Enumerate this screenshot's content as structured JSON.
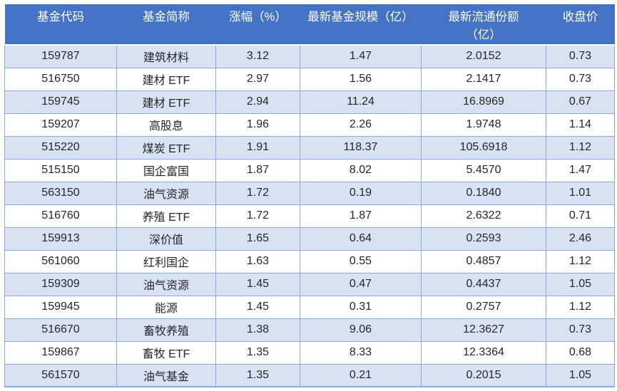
{
  "colors": {
    "header_bg": "#4472C4",
    "header_text": "#FFFFFF",
    "band_bg": "#D9E2F3",
    "row_bg": "#FFFFFF",
    "grid": "#8EA9DB",
    "body_text": "#262626"
  },
  "chart_data": {
    "type": "table",
    "title": "",
    "columns": [
      "基金代码",
      "基金简称",
      "涨幅（%）",
      "最新基金规模（亿）",
      "最新流通份额\n（亿）",
      "收盘价"
    ],
    "rows": [
      [
        "159787",
        "建筑材料",
        "3.12",
        "1.47",
        "2.0152",
        "0.73"
      ],
      [
        "516750",
        "建材 ETF",
        "2.97",
        "1.56",
        "2.1417",
        "0.73"
      ],
      [
        "159745",
        "建材 ETF",
        "2.94",
        "11.24",
        "16.8969",
        "0.67"
      ],
      [
        "159207",
        "高股息",
        "1.96",
        "2.26",
        "1.9748",
        "1.14"
      ],
      [
        "515220",
        "煤炭 ETF",
        "1.91",
        "118.37",
        "105.6918",
        "1.12"
      ],
      [
        "515150",
        "国企富国",
        "1.87",
        "8.02",
        "5.4570",
        "1.47"
      ],
      [
        "563150",
        "油气资源",
        "1.72",
        "0.19",
        "0.1840",
        "1.01"
      ],
      [
        "516760",
        "养殖 ETF",
        "1.72",
        "1.87",
        "2.6322",
        "0.71"
      ],
      [
        "159913",
        "深价值",
        "1.65",
        "0.64",
        "0.2593",
        "2.46"
      ],
      [
        "561060",
        "红利国企",
        "1.63",
        "0.55",
        "0.4857",
        "1.12"
      ],
      [
        "159309",
        "油气资源",
        "1.45",
        "0.47",
        "0.4437",
        "1.05"
      ],
      [
        "159945",
        "能源",
        "1.45",
        "0.31",
        "0.2757",
        "1.12"
      ],
      [
        "516670",
        "畜牧养殖",
        "1.38",
        "9.06",
        "12.3627",
        "0.73"
      ],
      [
        "159867",
        "畜牧 ETF",
        "1.35",
        "8.33",
        "12.3364",
        "0.68"
      ],
      [
        "561570",
        "油气基金",
        "1.35",
        "0.21",
        "0.2015",
        "1.05"
      ]
    ]
  }
}
